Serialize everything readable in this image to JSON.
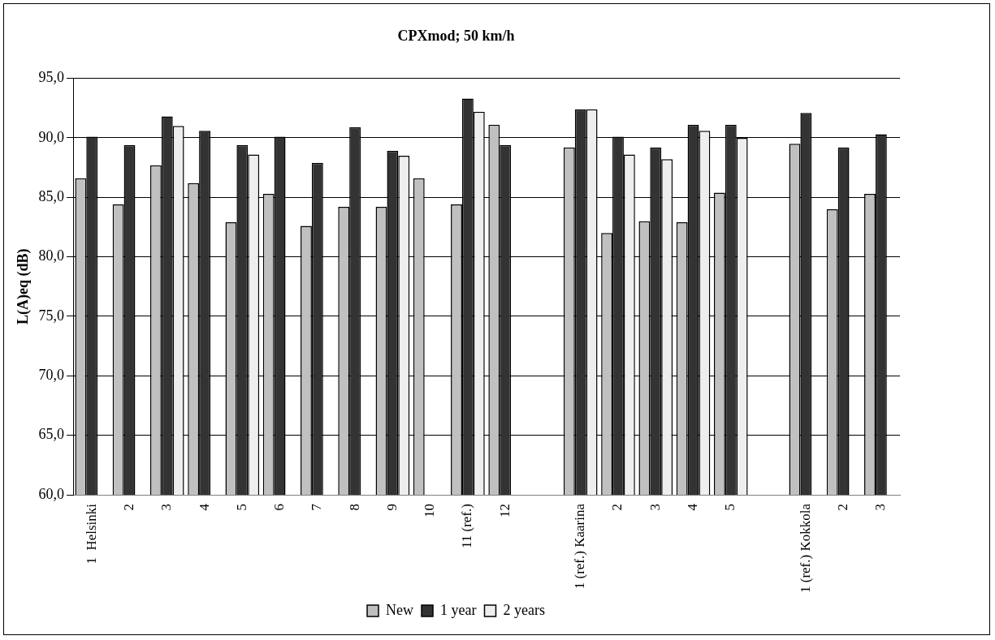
{
  "chart_data": {
    "type": "bar",
    "title": "CPXmod; 50 km/h",
    "ylabel": "L(A)eq (dB)",
    "categories": [
      "1  Helsinki",
      "2",
      "3",
      "4",
      "5",
      "6",
      "7",
      "8",
      "9",
      "10",
      "11 (ref.)",
      "12",
      null,
      "1 (ref.) Kaarina",
      "2",
      "3",
      "4",
      "5",
      null,
      "1 (ref.) Kokkola",
      "2",
      "3"
    ],
    "series": [
      {
        "name": "New",
        "color": "#c0c0c0",
        "values": [
          86.6,
          84.4,
          87.7,
          86.2,
          82.9,
          85.3,
          82.6,
          84.2,
          84.2,
          86.6,
          84.4,
          91.1,
          null,
          89.2,
          82.0,
          83.0,
          82.9,
          85.4,
          null,
          89.5,
          84.0,
          85.3
        ]
      },
      {
        "name": "1 year",
        "color": "#333333",
        "values": [
          90.1,
          89.4,
          91.8,
          90.6,
          89.4,
          90.1,
          87.9,
          90.9,
          88.9,
          null,
          93.3,
          89.4,
          null,
          92.4,
          90.1,
          89.2,
          91.1,
          91.1,
          null,
          92.1,
          89.2,
          90.3
        ]
      },
      {
        "name": "2 years",
        "color": "#eeeeee",
        "values": [
          null,
          null,
          91.0,
          null,
          88.6,
          null,
          null,
          null,
          88.5,
          null,
          92.2,
          null,
          null,
          92.4,
          88.6,
          88.2,
          90.6,
          90.0,
          null,
          null,
          null,
          null
        ]
      }
    ],
    "ylim": [
      60,
      95
    ],
    "yticks": [
      {
        "value": 60,
        "label": "60,0"
      },
      {
        "value": 65,
        "label": "65,0"
      },
      {
        "value": 70,
        "label": "70,0"
      },
      {
        "value": 75,
        "label": "75,0"
      },
      {
        "value": 80,
        "label": "80,0"
      },
      {
        "value": 85,
        "label": "85,0"
      },
      {
        "value": 90,
        "label": "90,0"
      },
      {
        "value": 95,
        "label": "95,0"
      }
    ],
    "grid": "y",
    "legend": "bottom"
  }
}
